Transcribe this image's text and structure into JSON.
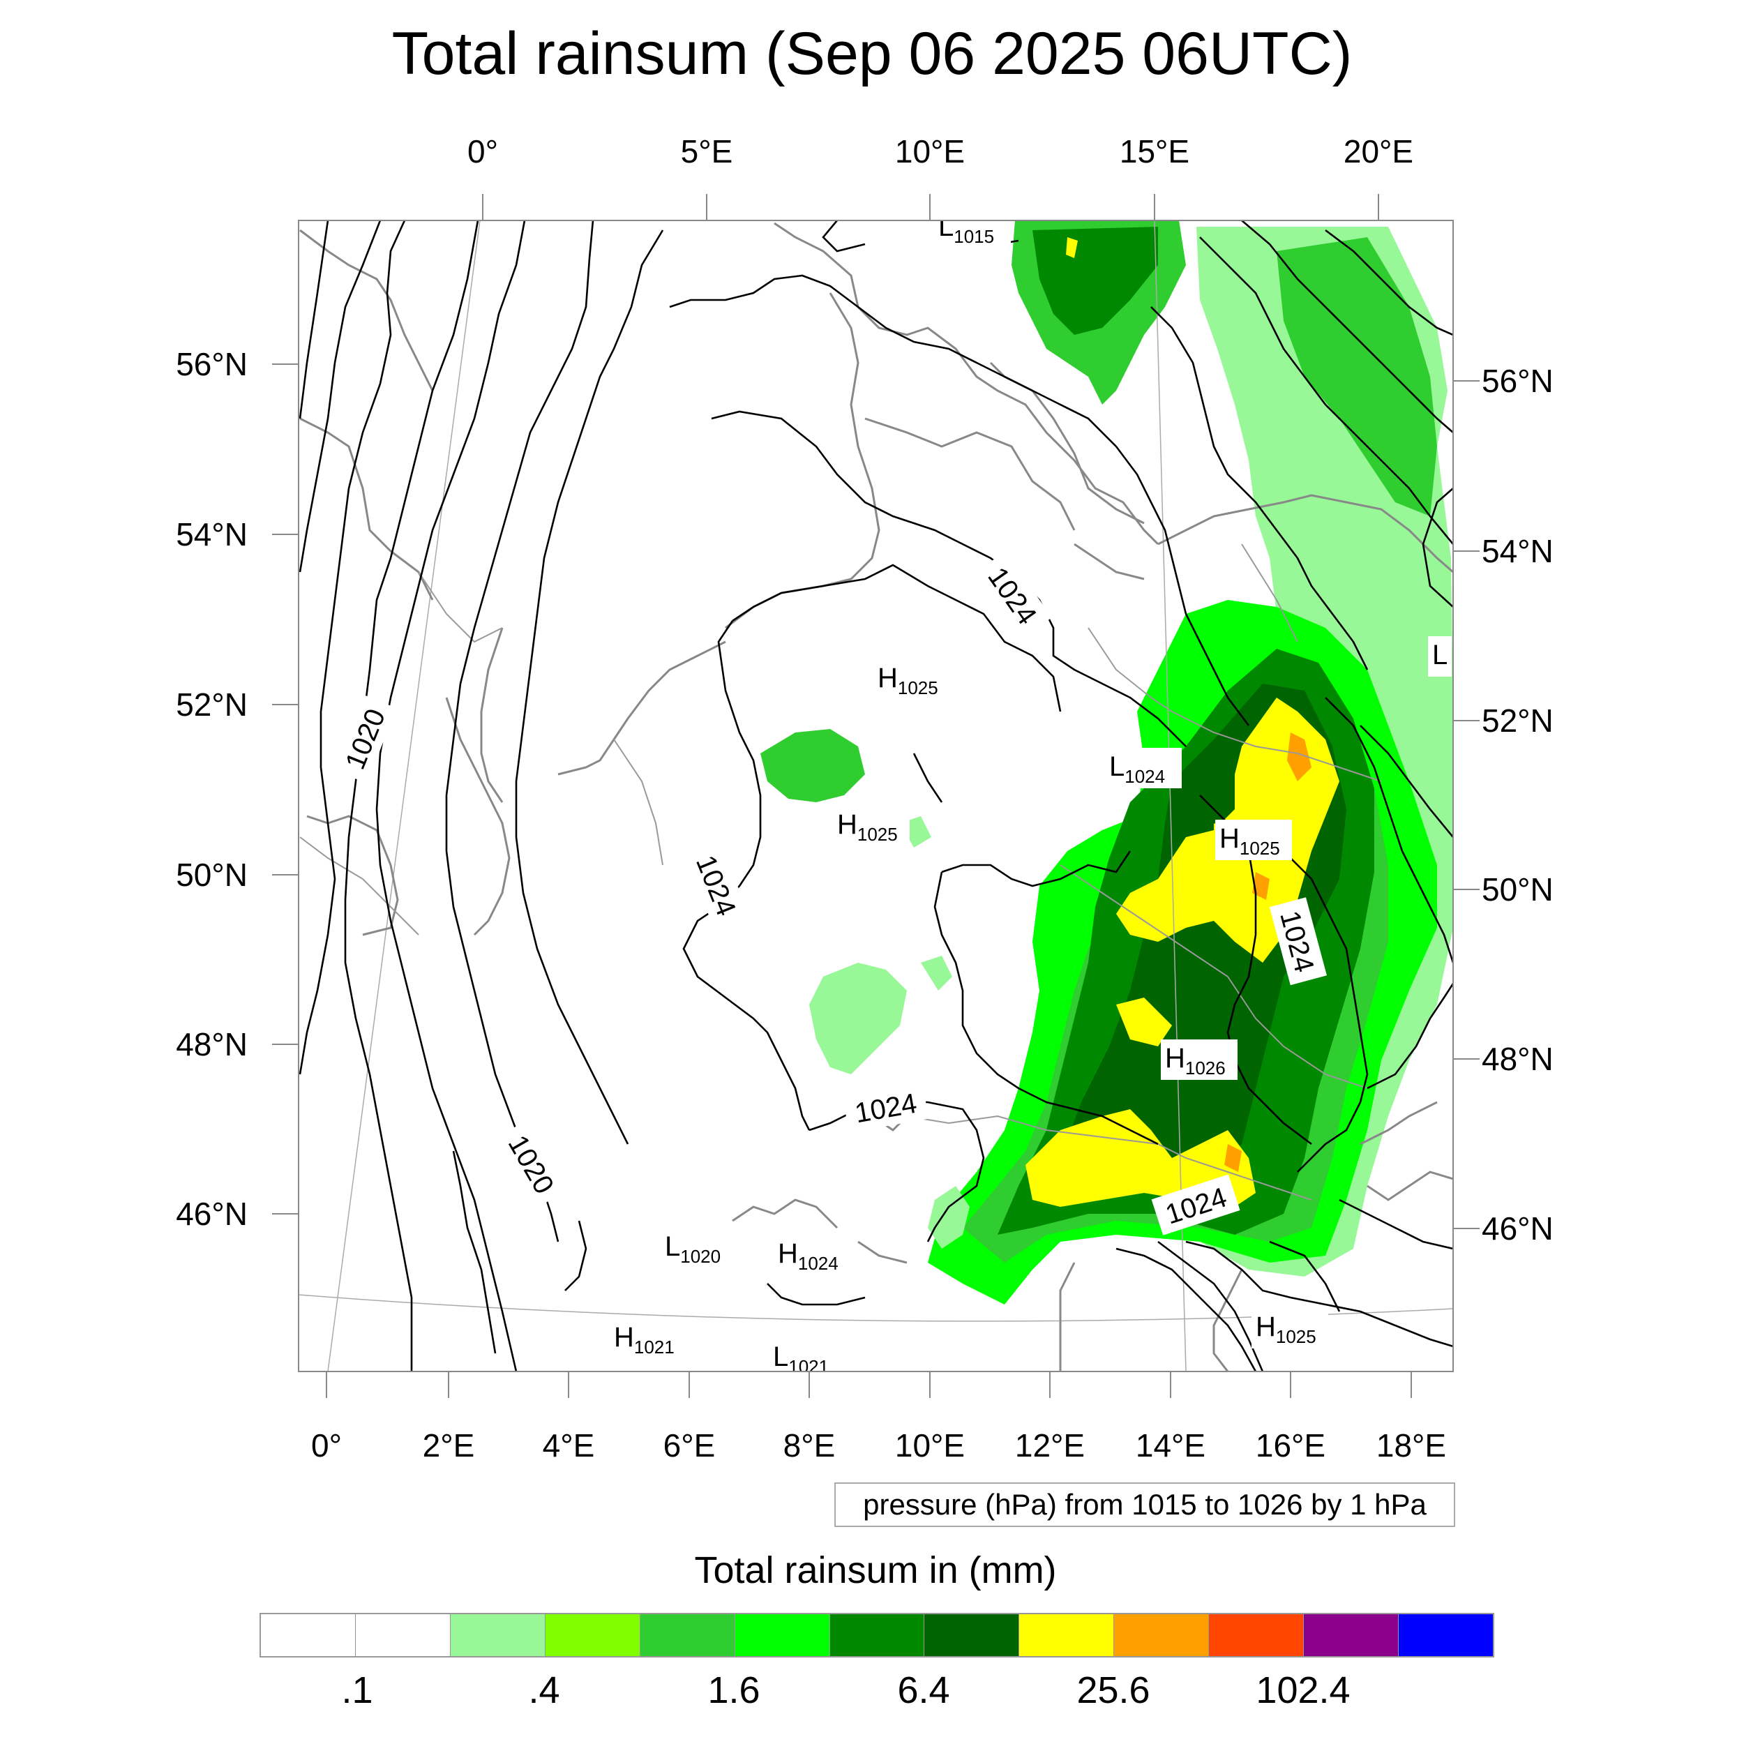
{
  "title": "Total rainsum (Sep 06 2025 06UTC)",
  "top_lon_labels": [
    "0°",
    "5°E",
    "10°E",
    "15°E",
    "20°E"
  ],
  "bottom_lon_labels": [
    "0°",
    "2°E",
    "4°E",
    "6°E",
    "8°E",
    "10°E",
    "12°E",
    "14°E",
    "16°E",
    "18°E"
  ],
  "left_lat_labels": [
    "56°N",
    "54°N",
    "52°N",
    "50°N",
    "48°N",
    "46°N"
  ],
  "right_lat_labels": [
    "56°N",
    "54°N",
    "52°N",
    "50°N",
    "48°N",
    "46°N"
  ],
  "contour_info": "pressure (hPa) from 1015 to 1026 by 1 hPa",
  "colorbar": {
    "title": "Total rainsum in (mm)",
    "colors": [
      "#ffffff",
      "#ffffff",
      "#98f898",
      "#80ff00",
      "#30cd30",
      "#00ff00",
      "#008800",
      "#006400",
      "#ffff00",
      "#ffa000",
      "#ff4500",
      "#8b008b",
      "#0000ff"
    ],
    "labels": [
      ".1",
      ".4",
      "1.6",
      "6.4",
      "25.6",
      "102.4"
    ]
  },
  "pressure_labels": [
    {
      "type": "L",
      "value": "1015"
    },
    {
      "type": "H",
      "value": "1025"
    },
    {
      "type": "L",
      "value": "1024"
    },
    {
      "type": "H",
      "value": "1025"
    },
    {
      "type": "H",
      "value": "1025"
    },
    {
      "type": "H",
      "value": "1026"
    },
    {
      "type": "L",
      "value": "1020"
    },
    {
      "type": "H",
      "value": "1024"
    },
    {
      "type": "H",
      "value": "1021"
    },
    {
      "type": "L",
      "value": "1021"
    },
    {
      "type": "H",
      "value": "1025"
    },
    {
      "type": "L",
      "value": ""
    }
  ],
  "isobar_labels": [
    "1020",
    "1020",
    "1024",
    "1024",
    "1024",
    "1024",
    "1024"
  ],
  "rain_legend_colors": {
    "light": "#98f898",
    "lime": "#80ff00",
    "mid": "#30cd30",
    "bright": "#00ff00",
    "dark": "#008800",
    "darker": "#006400",
    "yellow": "#ffff00",
    "orange": "#ffa000"
  }
}
